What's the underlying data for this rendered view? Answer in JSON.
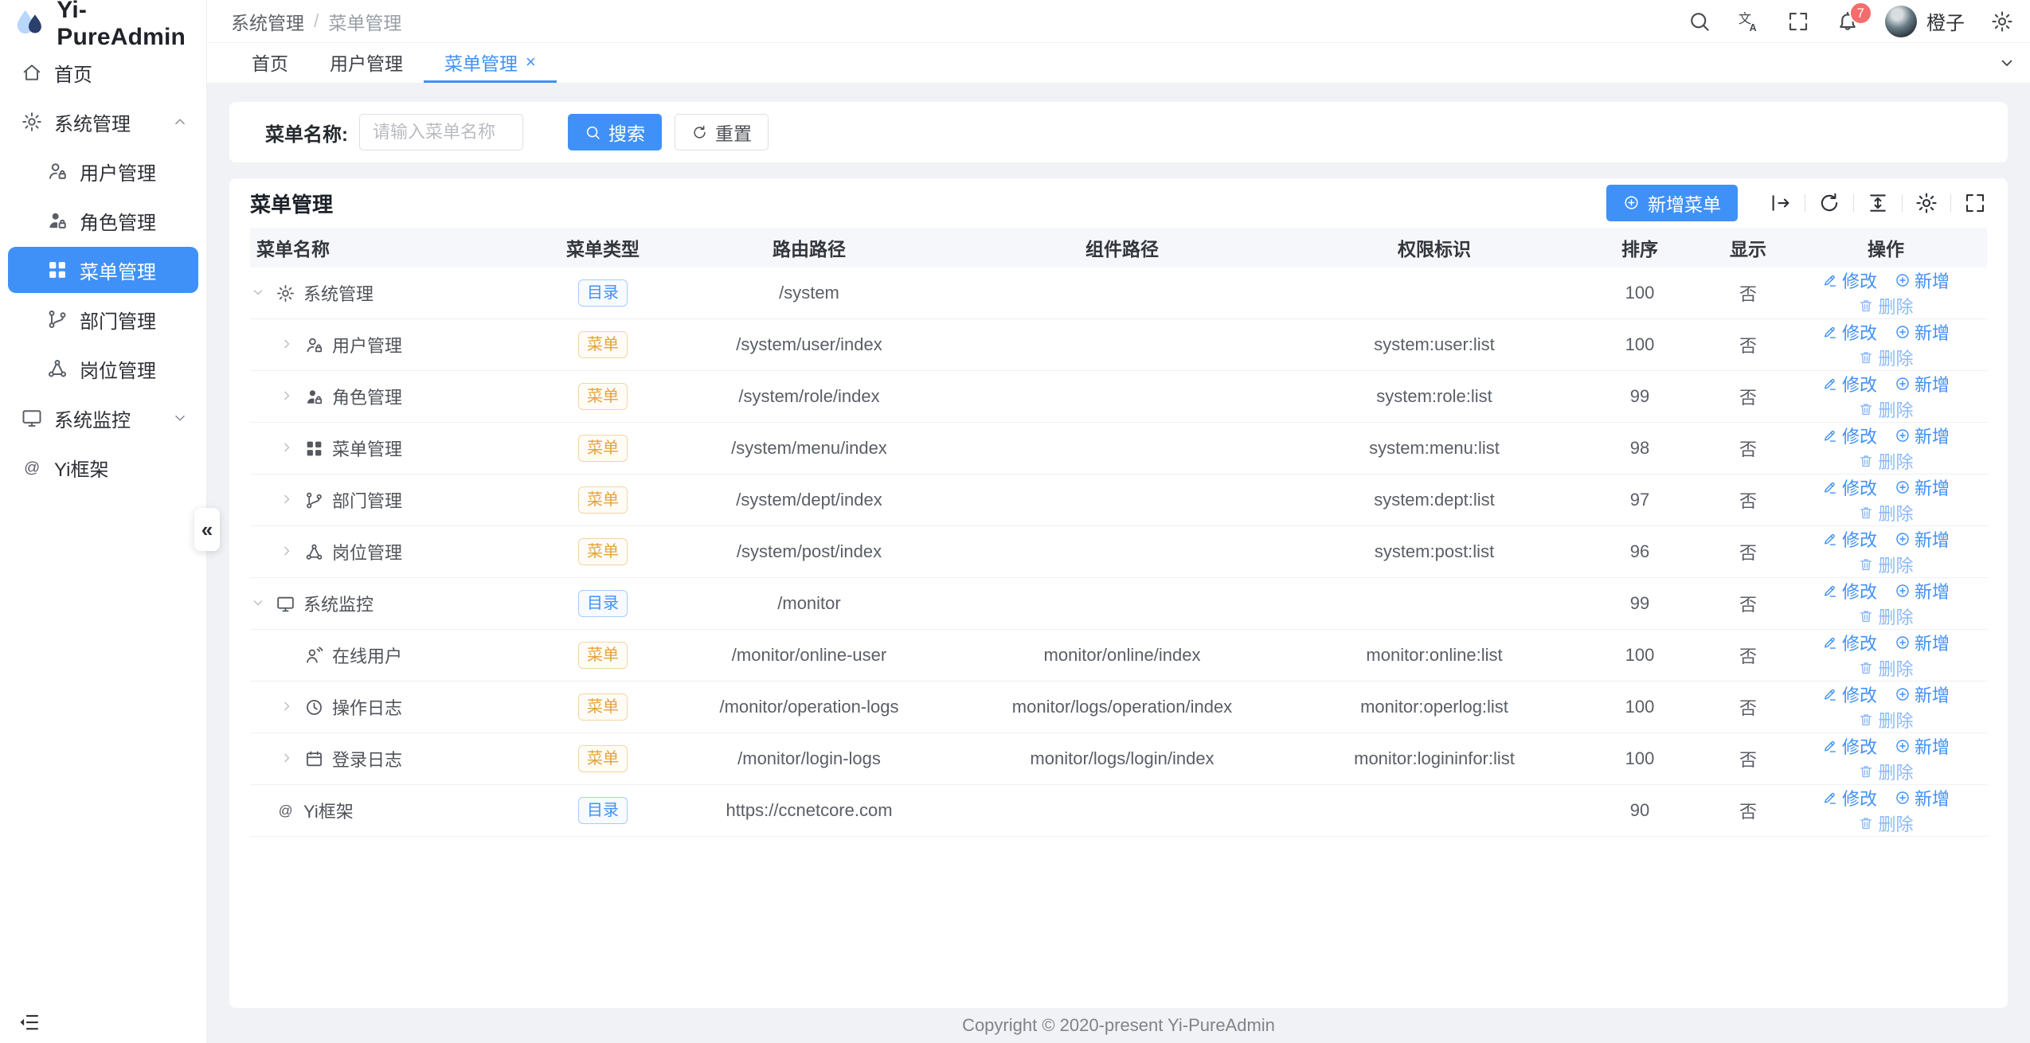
{
  "app": {
    "name": "Yi-PureAdmin"
  },
  "colors": {
    "primary": "#4091f7",
    "tag_dir": "#4091f7",
    "tag_menu": "#e6a23c",
    "badge": "#f56c6c"
  },
  "header": {
    "breadcrumb": [
      "系统管理",
      "菜单管理"
    ],
    "separator": "/",
    "right_icons": [
      "search-icon",
      "translate-icon",
      "fullscreen-icon"
    ],
    "notifications_count": "7",
    "username": "橙子",
    "settings_icon": "gear-icon"
  },
  "tabs": [
    {
      "label": "首页",
      "active": false,
      "closable": false
    },
    {
      "label": "用户管理",
      "active": false,
      "closable": false
    },
    {
      "label": "菜单管理",
      "active": true,
      "closable": true
    }
  ],
  "sidebar": {
    "items": [
      {
        "label": "首页",
        "icon": "home-icon",
        "depth": 0,
        "active": false,
        "chevron": null
      },
      {
        "label": "系统管理",
        "icon": "gear-icon",
        "depth": 0,
        "active": false,
        "chevron": "up"
      },
      {
        "label": "用户管理",
        "icon": "user-lock-icon",
        "depth": 1,
        "active": false,
        "chevron": null
      },
      {
        "label": "角色管理",
        "icon": "role-lock-icon",
        "depth": 1,
        "active": false,
        "chevron": null
      },
      {
        "label": "菜单管理",
        "icon": "menu-grid-icon",
        "depth": 1,
        "active": true,
        "chevron": null
      },
      {
        "label": "部门管理",
        "icon": "dept-branch-icon",
        "depth": 1,
        "active": false,
        "chevron": null
      },
      {
        "label": "岗位管理",
        "icon": "post-nodes-icon",
        "depth": 1,
        "active": false,
        "chevron": null
      },
      {
        "label": "系统监控",
        "icon": "monitor-icon",
        "depth": 0,
        "active": false,
        "chevron": "down"
      },
      {
        "label": "Yi框架",
        "icon": "at-icon",
        "depth": 0,
        "active": false,
        "chevron": null
      }
    ],
    "collapse_glyph": "«",
    "bottom_icon": "fold-menu-icon"
  },
  "search": {
    "label": "菜单名称:",
    "placeholder": "请输入菜单名称",
    "search_label": "搜索",
    "reset_label": "重置"
  },
  "card": {
    "title": "菜单管理",
    "add_label": "新增菜单",
    "toolbar_icons": [
      "expand-all-icon",
      "refresh-icon",
      "density-icon",
      "settings-icon",
      "fullscreen-icon"
    ]
  },
  "table": {
    "columns": [
      "菜单名称",
      "菜单类型",
      "路由路径",
      "组件路径",
      "权限标识",
      "排序",
      "显示",
      "操作"
    ],
    "actions": {
      "edit": "修改",
      "add": "新增",
      "delete": "删除"
    },
    "rows": [
      {
        "name": "系统管理",
        "icon": "gear-icon",
        "depth": 0,
        "chevron": "down",
        "type": "目录",
        "route": "/system",
        "component": "",
        "perms": "",
        "sort": "100",
        "visible": "否"
      },
      {
        "name": "用户管理",
        "icon": "user-lock-icon",
        "depth": 1,
        "chevron": "right",
        "type": "菜单",
        "route": "/system/user/index",
        "component": "",
        "perms": "system:user:list",
        "sort": "100",
        "visible": "否"
      },
      {
        "name": "角色管理",
        "icon": "role-lock-icon",
        "depth": 1,
        "chevron": "right",
        "type": "菜单",
        "route": "/system/role/index",
        "component": "",
        "perms": "system:role:list",
        "sort": "99",
        "visible": "否"
      },
      {
        "name": "菜单管理",
        "icon": "menu-grid-icon",
        "depth": 1,
        "chevron": "right",
        "type": "菜单",
        "route": "/system/menu/index",
        "component": "",
        "perms": "system:menu:list",
        "sort": "98",
        "visible": "否"
      },
      {
        "name": "部门管理",
        "icon": "dept-branch-icon",
        "depth": 1,
        "chevron": "right",
        "type": "菜单",
        "route": "/system/dept/index",
        "component": "",
        "perms": "system:dept:list",
        "sort": "97",
        "visible": "否"
      },
      {
        "name": "岗位管理",
        "icon": "post-nodes-icon",
        "depth": 1,
        "chevron": "right",
        "type": "菜单",
        "route": "/system/post/index",
        "component": "",
        "perms": "system:post:list",
        "sort": "96",
        "visible": "否"
      },
      {
        "name": "系统监控",
        "icon": "monitor-icon",
        "depth": 0,
        "chevron": "down",
        "type": "目录",
        "route": "/monitor",
        "component": "",
        "perms": "",
        "sort": "99",
        "visible": "否"
      },
      {
        "name": "在线用户",
        "icon": "online-user-icon",
        "depth": 1,
        "chevron": "none",
        "type": "菜单",
        "route": "/monitor/online-user",
        "component": "monitor/online/index",
        "perms": "monitor:online:list",
        "sort": "100",
        "visible": "否"
      },
      {
        "name": "操作日志",
        "icon": "clock-icon",
        "depth": 1,
        "chevron": "right",
        "type": "菜单",
        "route": "/monitor/operation-logs",
        "component": "monitor/logs/operation/index",
        "perms": "monitor:operlog:list",
        "sort": "100",
        "visible": "否"
      },
      {
        "name": "登录日志",
        "icon": "calendar-icon",
        "depth": 1,
        "chevron": "right",
        "type": "菜单",
        "route": "/monitor/login-logs",
        "component": "monitor/logs/login/index",
        "perms": "monitor:logininfor:list",
        "sort": "100",
        "visible": "否"
      },
      {
        "name": "Yi框架",
        "icon": "at-icon",
        "depth": 0,
        "chevron": "none",
        "type": "目录",
        "route": "https://ccnetcore.com",
        "component": "",
        "perms": "",
        "sort": "90",
        "visible": "否"
      }
    ]
  },
  "footer": {
    "copyright": "Copyright © 2020-present Yi-PureAdmin"
  }
}
